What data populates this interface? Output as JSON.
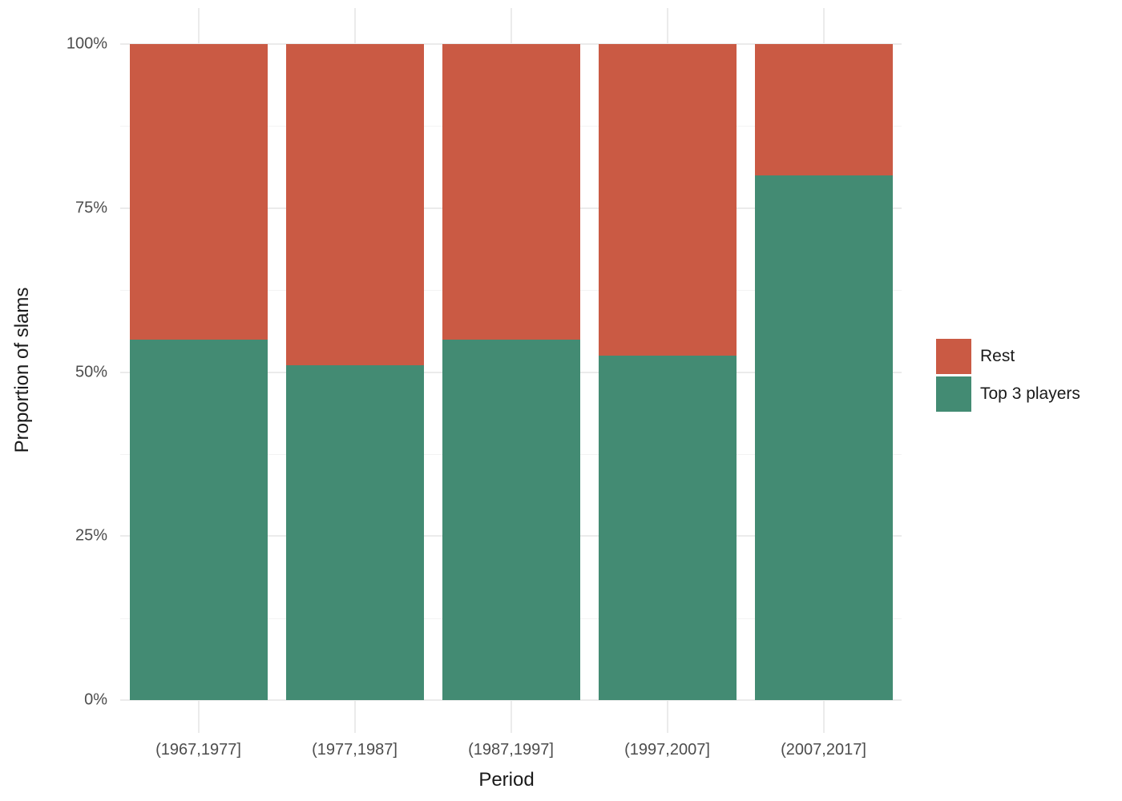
{
  "figure": {
    "background": "#FFFFFF"
  },
  "chart_data": {
    "type": "bar",
    "stacked": true,
    "orientation": "vertical",
    "title": "",
    "xlabel": "Period",
    "ylabel": "Proportion of slams",
    "categories": [
      "(1967,1977]",
      "(1977,1987]",
      "(1987,1997]",
      "(1997,2007]",
      "(2007,2017]"
    ],
    "series": [
      {
        "name": "Top 3 players",
        "color": "#438B73",
        "values": [
          55,
          51,
          55,
          52.5,
          80
        ]
      },
      {
        "name": "Rest",
        "color": "#CA5A44",
        "values": [
          45,
          49,
          45,
          47.5,
          20
        ]
      }
    ],
    "ylim": [
      0,
      100
    ],
    "y_major_ticks": [
      {
        "value": 0,
        "label": "0%"
      },
      {
        "value": 25,
        "label": "25%"
      },
      {
        "value": 50,
        "label": "50%"
      },
      {
        "value": 75,
        "label": "75%"
      },
      {
        "value": 100,
        "label": "100%"
      }
    ],
    "y_minor_ticks": [
      12.5,
      37.5,
      62.5,
      87.5
    ],
    "grid": "on",
    "legend": {
      "position": "right",
      "entries": [
        {
          "label": "Rest",
          "color": "#CA5A44"
        },
        {
          "label": "Top 3 players",
          "color": "#438B73"
        }
      ]
    }
  }
}
